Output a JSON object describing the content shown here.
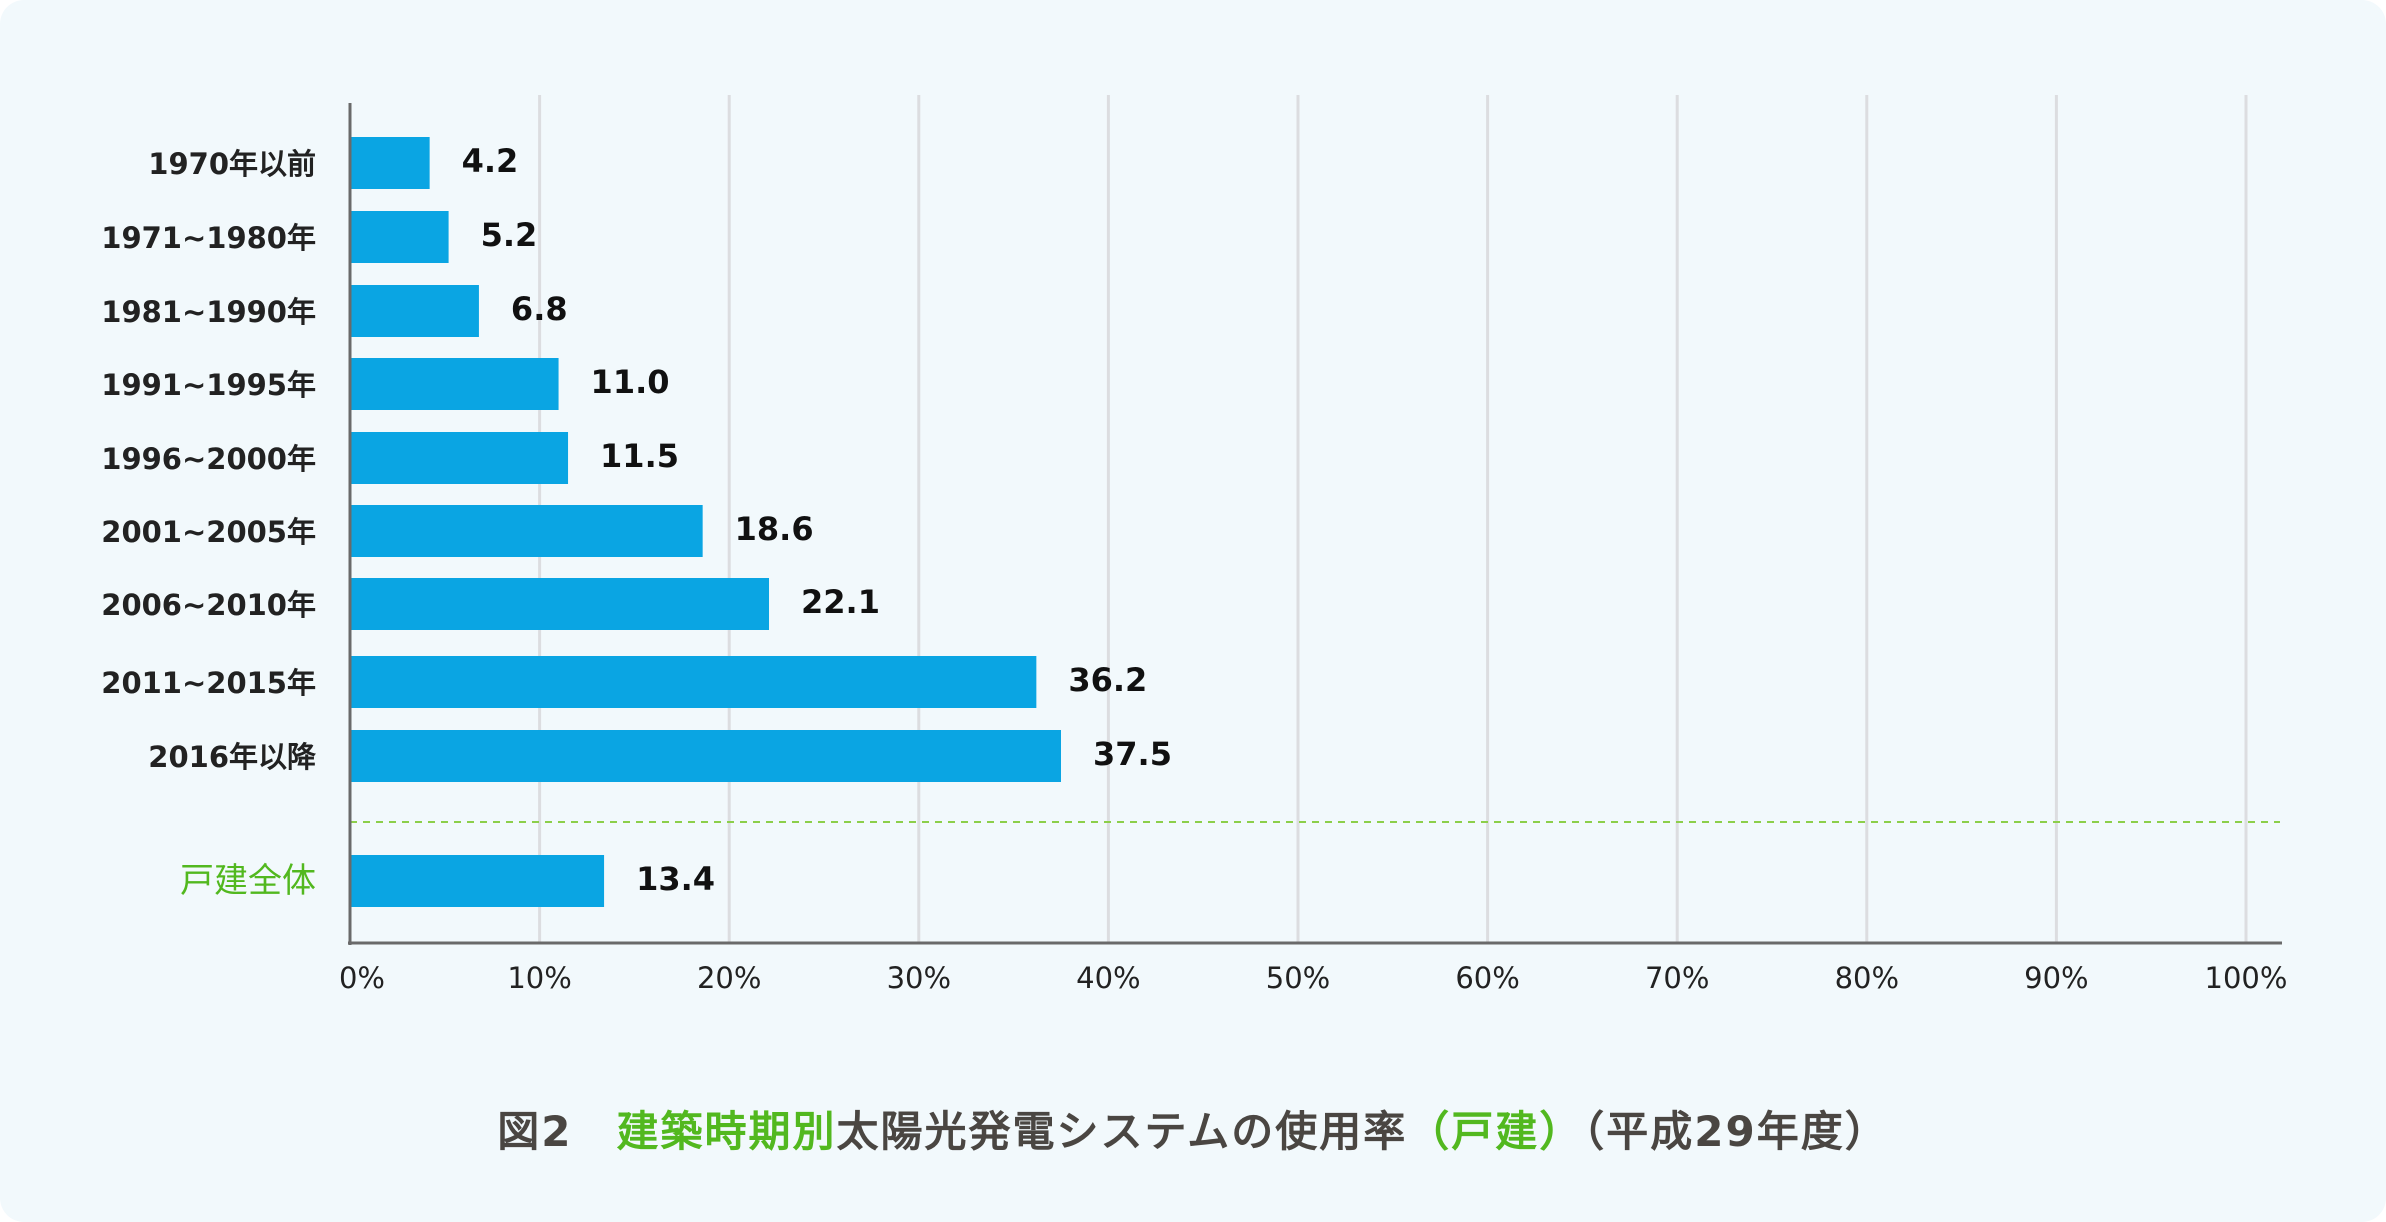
{
  "chart_data": {
    "type": "bar",
    "orientation": "horizontal",
    "categories": [
      "1970年以前",
      "1971~1980年",
      "1981~1990年",
      "1991~1995年",
      "1996~2000年",
      "2001~2005年",
      "2006~2010年",
      "2011~2015年",
      "2016年以降",
      "戸建全体"
    ],
    "values": [
      4.2,
      5.2,
      6.8,
      11.0,
      11.5,
      18.6,
      22.1,
      36.2,
      37.5,
      13.4
    ],
    "value_labels": [
      "4.2",
      "5.2",
      "6.8",
      "11.0",
      "11.5",
      "18.6",
      "22.1",
      "36.2",
      "37.5",
      "13.4"
    ],
    "xlim": [
      0,
      100
    ],
    "x_ticks": [
      "0%",
      "10%",
      "20%",
      "30%",
      "40%",
      "50%",
      "60%",
      "70%",
      "80%",
      "90%",
      "100%"
    ],
    "grid": true,
    "highlight_category": "戸建全体",
    "colors": {
      "bar": "#0aa5e3",
      "highlight_label": "#52b81f",
      "separator": "#8ccf4a",
      "grid": "#dcdde0",
      "axis": "#6a6a6a",
      "background": "#f2f9fc"
    },
    "caption": {
      "prefix": "図2　",
      "green1": "建築時期別",
      "middle": "太陽光発電システムの使用率",
      "green2": "（戸建）",
      "suffix": "（平成29年度）"
    }
  }
}
